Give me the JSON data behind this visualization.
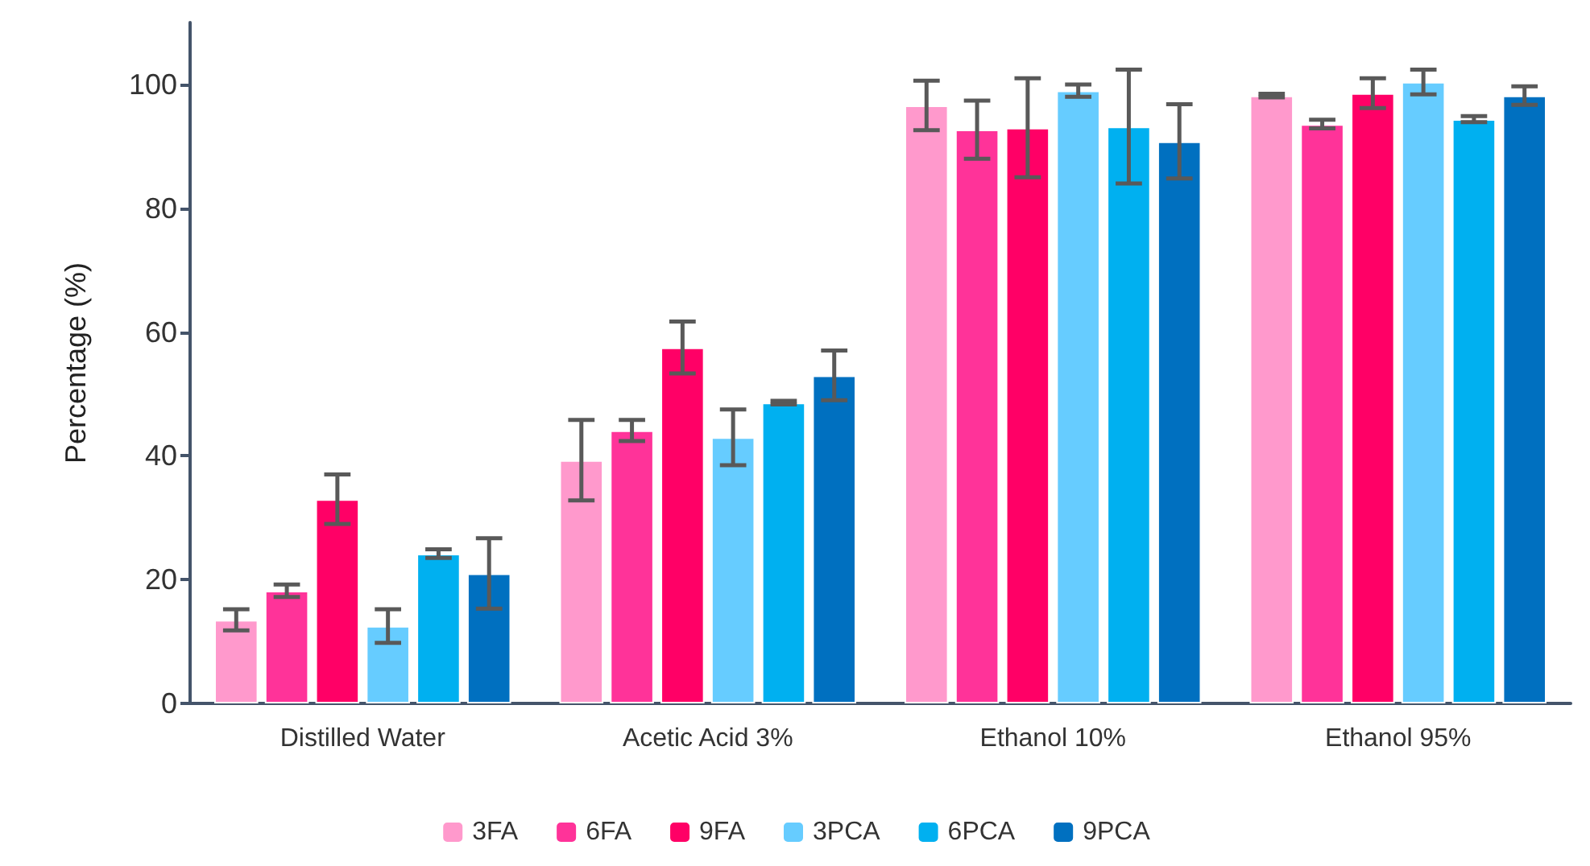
{
  "chart_data": {
    "type": "bar",
    "ylabel": "Percentage (%)",
    "categories": [
      "Distilled Water",
      "Acetic Acid 3%",
      "Ethanol 10%",
      "Ethanol 95%"
    ],
    "series": [
      {
        "name": "3FA",
        "color": "#ff99cc",
        "values": [
          13.5,
          39.3,
          96.6,
          98.2
        ],
        "errors": [
          1.7,
          6.5,
          4,
          0.3
        ]
      },
      {
        "name": "6FA",
        "color": "#ff3399",
        "values": [
          18.2,
          44.1,
          92.7,
          93.6
        ],
        "errors": [
          1,
          1.7,
          4.7,
          0.7
        ]
      },
      {
        "name": "9FA",
        "color": "#ff0066",
        "values": [
          33,
          57.5,
          93,
          98.6
        ],
        "errors": [
          4,
          4.2,
          8,
          2.4
        ]
      },
      {
        "name": "3PCA",
        "color": "#66ccff",
        "values": [
          12.5,
          43,
          99,
          100.4
        ],
        "errors": [
          2.7,
          4.5,
          1,
          2
        ]
      },
      {
        "name": "6PCA",
        "color": "#00b0f0",
        "values": [
          24.2,
          48.6,
          93.2,
          94.4
        ],
        "errors": [
          0.7,
          0.3,
          9.2,
          0.5
        ]
      },
      {
        "name": "9PCA",
        "color": "#0070c0",
        "values": [
          21,
          53,
          90.8,
          98.2
        ],
        "errors": [
          5.7,
          4,
          6,
          1.5
        ]
      }
    ],
    "ylim": [
      0,
      110
    ],
    "yticks": [
      0,
      20,
      40,
      60,
      80,
      100
    ],
    "grid": false,
    "legend": "bottom"
  }
}
